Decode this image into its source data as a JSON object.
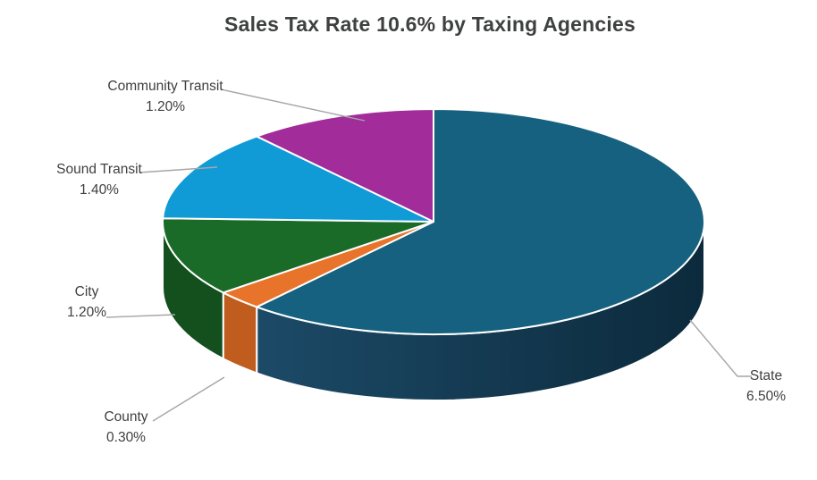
{
  "title": "Sales Tax Rate 10.6% by Taxing Agencies",
  "chart_data": {
    "type": "pie",
    "title": "Sales Tax Rate 10.6% by Taxing Agencies",
    "is_3d": true,
    "start_angle_deg": 0,
    "direction": "clockwise",
    "total_rate": "10.6%",
    "legend": "none",
    "leader_line_color": "#a6a6a6",
    "label_text_color": "#3f4040",
    "slice_border_color": "#ffffff",
    "slices": [
      {
        "label": "State",
        "value": 6.5,
        "pct_label": "6.50%",
        "color": "#16617f",
        "side_color": "#113349",
        "side_gradient": [
          "#1c4a67",
          "#0c2a3c"
        ]
      },
      {
        "label": "County",
        "value": 0.3,
        "pct_label": "0.30%",
        "color": "#e8742b",
        "side_color": "#bf5c1e"
      },
      {
        "label": "City",
        "value": 1.2,
        "pct_label": "1.20%",
        "color": "#1b6b28",
        "side_color": "#13501e"
      },
      {
        "label": "Sound Transit",
        "value": 1.4,
        "pct_label": "1.40%",
        "color": "#109bd7",
        "side_color": "#0c74a2"
      },
      {
        "label": "Community Transit",
        "value": 1.2,
        "pct_label": "1.20%",
        "color": "#a22c99",
        "side_color": "#7a2073"
      }
    ]
  }
}
